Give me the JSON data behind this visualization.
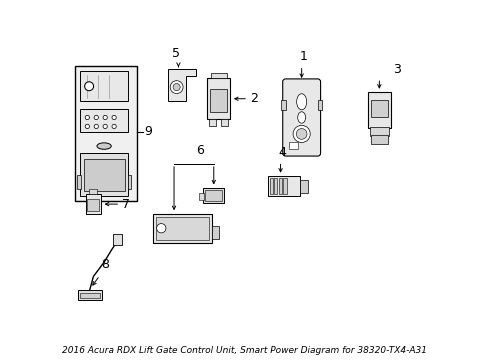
{
  "title": "2016 Acura RDX Lift Gate Control Unit, Smart Power Diagram for 38320-TX4-A31",
  "bg_color": "#ffffff",
  "line_color": "#000000",
  "font_size_label": 9,
  "font_size_title": 6.5
}
